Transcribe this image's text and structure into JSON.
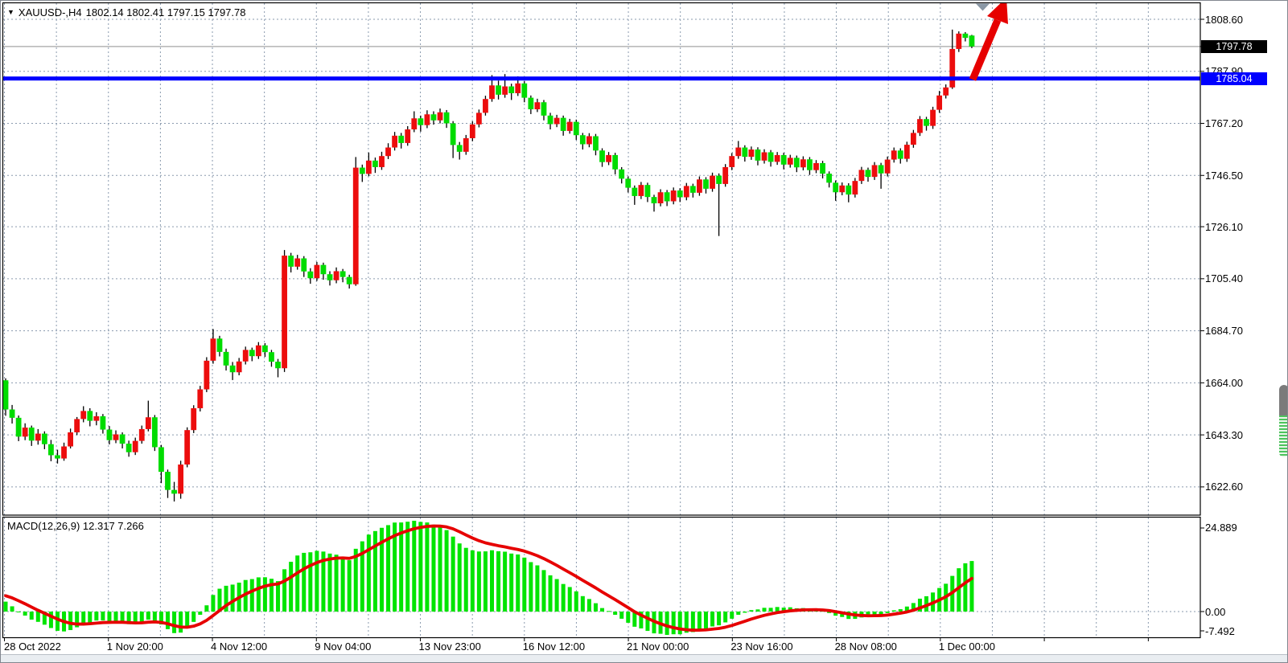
{
  "header": {
    "collapse_icon": "▼",
    "symbol_timeframe": "XAUUSD-,H4",
    "ohlc_text": "1802.14 1802.41 1797.15 1797.78"
  },
  "price_axis": {
    "bid_badge": {
      "text": "1797.78",
      "value": 1797.78,
      "bg": "#000000",
      "fg": "#ffffff"
    },
    "hline_badge": {
      "text": "1785.04",
      "value": 1785.04,
      "bg": "#0000ff",
      "fg": "#ffffff"
    }
  },
  "macd_panel": {
    "label": "MACD(12,26,9) 12.317 7.266",
    "axis_max": "24.889",
    "axis_zero": "0.00",
    "axis_min": "-7.492"
  },
  "chart_data": {
    "type": "candlestick",
    "symbol": "XAUUSD-",
    "timeframe": "H4",
    "title": "XAUUSD-,H4  1802.14 1802.41 1797.15 1797.78",
    "current_ohlc": {
      "open": 1802.14,
      "high": 1802.41,
      "low": 1797.15,
      "close": 1797.78
    },
    "y_axis": {
      "side": "right",
      "ticks": [
        1808.6,
        1787.9,
        1767.2,
        1746.5,
        1726.1,
        1705.4,
        1684.7,
        1664.0,
        1643.3,
        1622.6
      ]
    },
    "x_axis": {
      "ticks": [
        "28 Oct 2022",
        "1 Nov 20:00",
        "4 Nov 12:00",
        "9 Nov 04:00",
        "13 Nov 23:00",
        "16 Nov 12:00",
        "21 Nov 00:00",
        "23 Nov 16:00",
        "28 Nov 08:00",
        "1 Dec 00:00"
      ]
    },
    "grid": true,
    "horizontal_line": {
      "price": 1785.04,
      "color": "#0000ff",
      "thickness": 5
    },
    "bid_line": {
      "price": 1797.78,
      "color": "#a6a6a6"
    },
    "candle_format": "[open,high,low,close]",
    "up_candle_color": "#ec0d0d",
    "down_candle_color": "#00dc00",
    "candles": [
      [
        1665.0,
        1665.8,
        1650.9,
        1653.4
      ],
      [
        1653.4,
        1655.2,
        1647.8,
        1650.1
      ],
      [
        1650.1,
        1651.0,
        1640.8,
        1642.6
      ],
      [
        1642.6,
        1647.9,
        1641.2,
        1646.2
      ],
      [
        1646.2,
        1647.0,
        1638.9,
        1641.0
      ],
      [
        1641.0,
        1645.6,
        1639.4,
        1643.8
      ],
      [
        1643.8,
        1644.7,
        1637.6,
        1639.6
      ],
      [
        1639.6,
        1641.3,
        1632.8,
        1635.2
      ],
      [
        1635.2,
        1637.4,
        1631.9,
        1633.9
      ],
      [
        1633.9,
        1640.2,
        1633.0,
        1638.7
      ],
      [
        1638.7,
        1645.8,
        1637.9,
        1644.3
      ],
      [
        1644.3,
        1650.4,
        1643.2,
        1649.6
      ],
      [
        1649.6,
        1654.7,
        1648.3,
        1652.8
      ],
      [
        1652.8,
        1653.9,
        1646.7,
        1648.9
      ],
      [
        1648.9,
        1652.3,
        1647.1,
        1650.7
      ],
      [
        1650.7,
        1651.6,
        1643.8,
        1645.4
      ],
      [
        1645.4,
        1646.8,
        1639.5,
        1641.2
      ],
      [
        1641.2,
        1645.1,
        1640.0,
        1643.5
      ],
      [
        1643.5,
        1644.3,
        1637.9,
        1639.8
      ],
      [
        1639.8,
        1641.0,
        1634.6,
        1636.4
      ],
      [
        1636.4,
        1642.2,
        1635.3,
        1640.9
      ],
      [
        1640.9,
        1647.0,
        1639.8,
        1645.6
      ],
      [
        1645.6,
        1656.9,
        1644.7,
        1650.3
      ],
      [
        1650.3,
        1651.2,
        1636.9,
        1638.4
      ],
      [
        1638.4,
        1639.3,
        1624.1,
        1628.6
      ],
      [
        1628.6,
        1629.5,
        1618.2,
        1621.4
      ],
      [
        1621.4,
        1624.6,
        1616.8,
        1619.9
      ],
      [
        1619.9,
        1633.0,
        1617.9,
        1631.5
      ],
      [
        1631.5,
        1646.3,
        1630.4,
        1645.2
      ],
      [
        1645.2,
        1655.1,
        1644.0,
        1653.9
      ],
      [
        1653.9,
        1662.8,
        1652.6,
        1661.4
      ],
      [
        1661.4,
        1674.2,
        1660.3,
        1672.8
      ],
      [
        1672.8,
        1685.4,
        1671.6,
        1681.6
      ],
      [
        1681.6,
        1682.7,
        1674.5,
        1676.3
      ],
      [
        1676.3,
        1677.6,
        1668.9,
        1670.9
      ],
      [
        1670.9,
        1672.3,
        1665.1,
        1668.2
      ],
      [
        1668.2,
        1673.9,
        1667.0,
        1672.5
      ],
      [
        1672.5,
        1678.4,
        1671.3,
        1677.1
      ],
      [
        1677.1,
        1678.0,
        1672.6,
        1674.6
      ],
      [
        1674.6,
        1680.2,
        1673.5,
        1678.9
      ],
      [
        1678.9,
        1679.8,
        1674.3,
        1676.2
      ],
      [
        1676.2,
        1677.1,
        1670.4,
        1672.4
      ],
      [
        1672.4,
        1673.5,
        1666.2,
        1669.8
      ],
      [
        1669.8,
        1716.8,
        1668.3,
        1714.6
      ],
      [
        1714.6,
        1715.7,
        1707.9,
        1710.2
      ],
      [
        1710.2,
        1714.9,
        1709.0,
        1713.5
      ],
      [
        1713.5,
        1714.4,
        1706.1,
        1708.3
      ],
      [
        1708.3,
        1709.6,
        1703.4,
        1705.6
      ],
      [
        1705.6,
        1712.1,
        1704.5,
        1710.9
      ],
      [
        1710.9,
        1711.8,
        1705.0,
        1707.2
      ],
      [
        1707.2,
        1708.4,
        1702.7,
        1704.8
      ],
      [
        1704.8,
        1709.9,
        1703.6,
        1708.4
      ],
      [
        1708.4,
        1709.3,
        1704.0,
        1706.1
      ],
      [
        1706.1,
        1707.0,
        1701.5,
        1703.2
      ],
      [
        1703.2,
        1753.8,
        1702.6,
        1749.6
      ],
      [
        1749.6,
        1750.8,
        1743.9,
        1747.1
      ],
      [
        1747.1,
        1755.6,
        1746.2,
        1752.4
      ],
      [
        1752.4,
        1753.6,
        1747.5,
        1749.8
      ],
      [
        1749.8,
        1755.9,
        1748.7,
        1754.2
      ],
      [
        1754.2,
        1759.3,
        1753.0,
        1757.6
      ],
      [
        1757.6,
        1763.8,
        1756.4,
        1762.3
      ],
      [
        1762.3,
        1763.4,
        1757.2,
        1759.4
      ],
      [
        1759.4,
        1766.1,
        1758.3,
        1764.8
      ],
      [
        1764.8,
        1772.0,
        1763.7,
        1769.2
      ],
      [
        1769.2,
        1770.3,
        1763.9,
        1766.5
      ],
      [
        1766.5,
        1772.4,
        1765.3,
        1770.8
      ],
      [
        1770.8,
        1772.0,
        1766.7,
        1768.4
      ],
      [
        1768.4,
        1773.1,
        1767.2,
        1771.6
      ],
      [
        1771.6,
        1772.5,
        1765.4,
        1767.2
      ],
      [
        1767.2,
        1768.1,
        1753.4,
        1758.6
      ],
      [
        1758.6,
        1759.8,
        1752.8,
        1755.9
      ],
      [
        1755.9,
        1762.6,
        1754.7,
        1761.3
      ],
      [
        1761.3,
        1768.0,
        1760.1,
        1766.8
      ],
      [
        1766.8,
        1772.7,
        1765.6,
        1771.4
      ],
      [
        1771.4,
        1778.2,
        1770.3,
        1776.9
      ],
      [
        1776.9,
        1786.4,
        1775.8,
        1782.3
      ],
      [
        1782.3,
        1784.2,
        1776.7,
        1778.6
      ],
      [
        1778.6,
        1786.8,
        1777.4,
        1781.9
      ],
      [
        1781.9,
        1783.0,
        1776.5,
        1779.2
      ],
      [
        1779.2,
        1785.9,
        1778.1,
        1783.1
      ],
      [
        1783.1,
        1784.0,
        1775.6,
        1777.4
      ],
      [
        1777.4,
        1778.3,
        1770.9,
        1772.8
      ],
      [
        1772.8,
        1777.0,
        1771.7,
        1775.6
      ],
      [
        1775.6,
        1776.5,
        1768.4,
        1770.3
      ],
      [
        1770.3,
        1771.4,
        1764.8,
        1766.9
      ],
      [
        1766.9,
        1770.6,
        1765.7,
        1769.4
      ],
      [
        1769.4,
        1770.3,
        1762.3,
        1764.2
      ],
      [
        1764.2,
        1769.0,
        1763.1,
        1767.8
      ],
      [
        1767.8,
        1768.7,
        1760.6,
        1762.5
      ],
      [
        1762.5,
        1763.4,
        1756.8,
        1758.9
      ],
      [
        1758.9,
        1763.3,
        1757.7,
        1762.1
      ],
      [
        1762.1,
        1763.0,
        1754.5,
        1756.4
      ],
      [
        1756.4,
        1757.3,
        1749.9,
        1751.8
      ],
      [
        1751.8,
        1755.8,
        1750.6,
        1754.6
      ],
      [
        1754.6,
        1755.5,
        1746.9,
        1748.9
      ],
      [
        1748.9,
        1749.8,
        1743.3,
        1745.2
      ],
      [
        1745.2,
        1746.1,
        1739.7,
        1741.6
      ],
      [
        1741.6,
        1742.5,
        1734.8,
        1738.3
      ],
      [
        1738.3,
        1743.9,
        1737.1,
        1742.7
      ],
      [
        1742.7,
        1743.6,
        1735.9,
        1737.9
      ],
      [
        1737.9,
        1738.8,
        1732.1,
        1735.4
      ],
      [
        1735.4,
        1741.0,
        1734.2,
        1739.8
      ],
      [
        1739.8,
        1740.7,
        1734.3,
        1736.2
      ],
      [
        1736.2,
        1741.7,
        1735.0,
        1740.5
      ],
      [
        1740.5,
        1741.4,
        1735.9,
        1737.8
      ],
      [
        1737.8,
        1743.5,
        1736.6,
        1742.3
      ],
      [
        1742.3,
        1743.2,
        1737.7,
        1739.6
      ],
      [
        1739.6,
        1746.1,
        1738.4,
        1744.9
      ],
      [
        1744.9,
        1745.8,
        1739.3,
        1741.2
      ],
      [
        1741.2,
        1747.6,
        1740.0,
        1746.4
      ],
      [
        1746.4,
        1747.3,
        1722.4,
        1743.1
      ],
      [
        1743.1,
        1751.0,
        1742.0,
        1749.8
      ],
      [
        1749.8,
        1755.4,
        1748.6,
        1754.2
      ],
      [
        1754.2,
        1760.2,
        1753.1,
        1757.6
      ],
      [
        1757.6,
        1758.5,
        1752.0,
        1753.9
      ],
      [
        1753.9,
        1758.0,
        1752.7,
        1756.8
      ],
      [
        1756.8,
        1757.7,
        1750.5,
        1752.4
      ],
      [
        1752.4,
        1756.9,
        1751.2,
        1755.7
      ],
      [
        1755.7,
        1756.6,
        1750.0,
        1751.9
      ],
      [
        1751.9,
        1755.8,
        1750.7,
        1754.6
      ],
      [
        1754.6,
        1755.5,
        1748.9,
        1750.8
      ],
      [
        1750.8,
        1754.7,
        1749.6,
        1753.5
      ],
      [
        1753.5,
        1754.4,
        1747.8,
        1749.7
      ],
      [
        1749.7,
        1754.1,
        1748.5,
        1752.9
      ],
      [
        1752.9,
        1753.8,
        1746.7,
        1748.6
      ],
      [
        1748.6,
        1752.6,
        1747.4,
        1751.4
      ],
      [
        1751.4,
        1752.3,
        1745.3,
        1747.2
      ],
      [
        1747.2,
        1748.1,
        1741.7,
        1743.6
      ],
      [
        1743.6,
        1744.5,
        1736.4,
        1739.8
      ],
      [
        1739.8,
        1743.7,
        1738.6,
        1742.5
      ],
      [
        1742.5,
        1743.4,
        1735.8,
        1738.9
      ],
      [
        1738.9,
        1745.5,
        1737.7,
        1744.3
      ],
      [
        1744.3,
        1749.9,
        1743.1,
        1748.7
      ],
      [
        1748.7,
        1749.6,
        1744.0,
        1745.9
      ],
      [
        1745.9,
        1751.8,
        1744.7,
        1750.6
      ],
      [
        1750.6,
        1751.5,
        1741.2,
        1747.3
      ],
      [
        1747.3,
        1754.0,
        1746.1,
        1752.8
      ],
      [
        1752.8,
        1757.6,
        1751.6,
        1756.4
      ],
      [
        1756.4,
        1757.3,
        1751.2,
        1753.1
      ],
      [
        1753.1,
        1759.9,
        1751.9,
        1758.7
      ],
      [
        1758.7,
        1764.6,
        1757.5,
        1763.4
      ],
      [
        1763.4,
        1770.1,
        1762.2,
        1768.9
      ],
      [
        1768.9,
        1769.8,
        1764.3,
        1766.2
      ],
      [
        1766.2,
        1773.8,
        1765.0,
        1772.6
      ],
      [
        1772.6,
        1780.1,
        1771.4,
        1778.3
      ],
      [
        1778.3,
        1782.7,
        1777.1,
        1781.5
      ],
      [
        1781.5,
        1804.5,
        1780.9,
        1796.8
      ],
      [
        1796.8,
        1803.8,
        1795.6,
        1802.9
      ],
      [
        1802.9,
        1803.5,
        1799.8,
        1801.2
      ],
      [
        1802.14,
        1802.41,
        1797.15,
        1797.78
      ]
    ],
    "macd": {
      "name": "MACD",
      "fast": 12,
      "slow": 26,
      "signal": 9,
      "current_main": 12.317,
      "current_signal": 7.266,
      "scale_max": 24.889,
      "scale_min": -7.492,
      "zero_label": "0.00",
      "histogram_color": "#00e400",
      "signal_color": "#e60000",
      "seed_closes": [
        1641,
        1643.5,
        1642.2,
        1645,
        1647.4,
        1646.1,
        1648.8,
        1650.2,
        1649,
        1651.6,
        1653.8,
        1652.4,
        1655,
        1657.2,
        1656,
        1658.4,
        1660.6,
        1659.2,
        1661.8,
        1663.4,
        1662,
        1664.2,
        1666,
        1664.8,
        1666.4,
        1667,
        1665.6,
        1666.2,
        1665.2,
        1665,
        1664,
        1665.5,
        1664.5,
        1664.8
      ]
    },
    "annotations": {
      "trend_arrow": {
        "type": "arrow-up-right",
        "color": "#e60000",
        "shaft": [
          [
            1208,
            98
          ],
          [
            1239,
            24
          ]
        ],
        "head": [
          [
            1250,
            -4
          ],
          [
            1252,
            29
          ],
          [
            1226,
            19
          ]
        ],
        "shaft_width": 9
      },
      "top_marker": {
        "type": "triangle-down",
        "color": "#8a97a5",
        "points": [
          [
            1212,
            3.5
          ],
          [
            1229,
            3.5
          ],
          [
            1220.5,
            12.5
          ]
        ]
      }
    },
    "colors": {
      "background": "#ffffff",
      "grid": "#8a9aae",
      "wick": "#000000",
      "panel_border": "#000000",
      "axis_text": "#000000"
    }
  }
}
